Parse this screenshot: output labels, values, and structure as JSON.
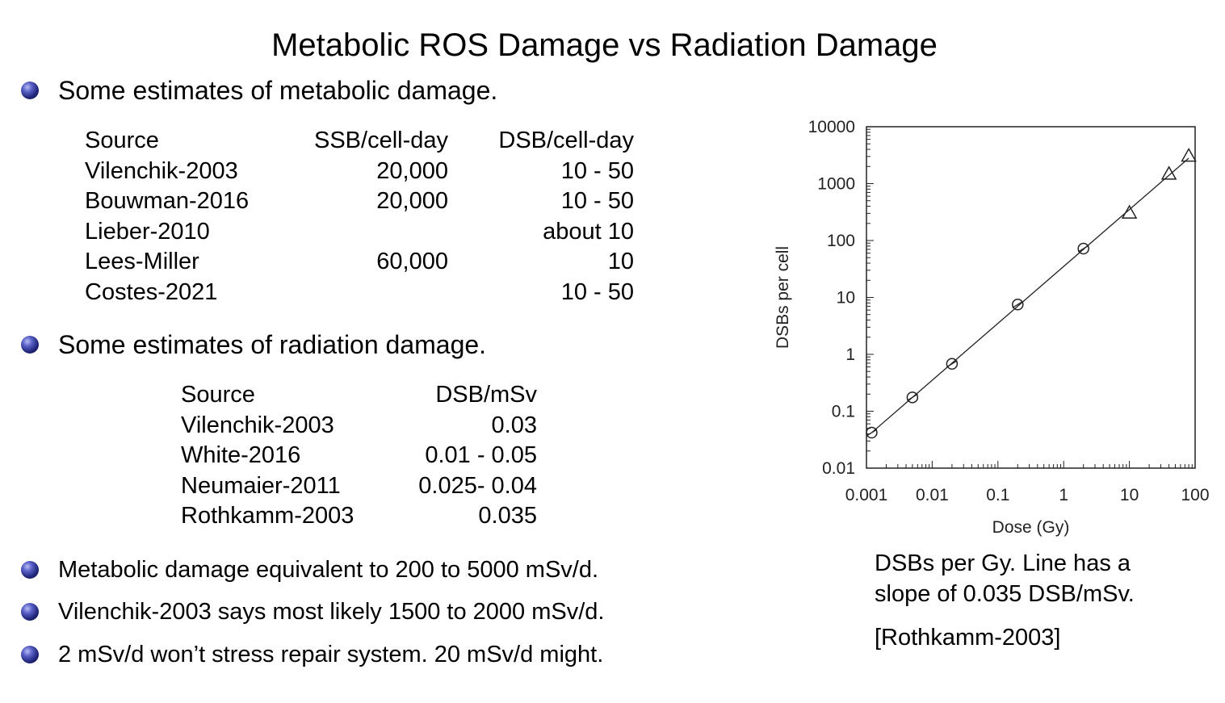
{
  "title": "Metabolic ROS Damage vs Radiation Damage",
  "bullets": {
    "metabolic": "Some estimates of metabolic damage.",
    "radiation": "Some estimates of radiation damage.",
    "b3": "Metabolic damage equivalent to 200 to 5000 mSv/d.",
    "b4": "Vilenchik-2003 says most likely 1500 to 2000 mSv/d.",
    "b5": "2 mSv/d won’t stress repair system. 20 mSv/d might."
  },
  "metabolic_table": {
    "headers": [
      "Source",
      "SSB/cell-day",
      "DSB/cell-day"
    ],
    "rows": [
      [
        "Vilenchik-2003",
        "20,000",
        "10 - 50"
      ],
      [
        "Bouwman-2016",
        "20,000",
        "10 - 50"
      ],
      [
        "Lieber-2010",
        "",
        "about 10"
      ],
      [
        "Lees-Miller",
        "60,000",
        "10"
      ],
      [
        "Costes-2021",
        "",
        "10 - 50"
      ]
    ]
  },
  "radiation_table": {
    "headers": [
      "Source",
      "DSB/mSv"
    ],
    "rows": [
      [
        "Vilenchik-2003",
        "0.03"
      ],
      [
        "White-2016",
        "0.01 - 0.05"
      ],
      [
        "Neumaier-2011",
        "0.025- 0.04"
      ],
      [
        "Rothkamm-2003",
        "0.035"
      ]
    ]
  },
  "caption": {
    "line1": "DSBs per Gy. Line has a",
    "line2": "slope of 0.035 DSB/mSv.",
    "ref": "[Rothkamm-2003]"
  },
  "chart_data": {
    "type": "scatter",
    "xscale": "log",
    "yscale": "log",
    "xlabel": "Dose (Gy)",
    "ylabel": "DSBs per cell",
    "xlim": [
      0.001,
      100
    ],
    "ylim": [
      0.01,
      10000
    ],
    "xticks": [
      0.001,
      0.01,
      0.1,
      1,
      10,
      100
    ],
    "xtick_labels": [
      "0.001",
      "0.01",
      "0.1",
      "1",
      "10",
      "100"
    ],
    "yticks": [
      0.01,
      0.1,
      1,
      10,
      100,
      1000,
      10000
    ],
    "ytick_labels": [
      "0.01",
      "0.1",
      "1",
      "10",
      "100",
      "1000",
      "10000"
    ],
    "series": [
      {
        "name": "circles",
        "marker": "circle-cross",
        "x": [
          0.0012,
          0.005,
          0.02,
          0.2,
          2
        ],
        "y": [
          0.042,
          0.175,
          0.68,
          7.5,
          72
        ]
      },
      {
        "name": "triangles",
        "marker": "triangle",
        "x": [
          10,
          40,
          80
        ],
        "y": [
          300,
          1450,
          3000
        ]
      }
    ],
    "fit_line": {
      "x": [
        0.0012,
        80
      ],
      "y": [
        0.042,
        2800
      ]
    },
    "colors": {
      "ink": "#222222",
      "background": "#ffffff"
    }
  }
}
